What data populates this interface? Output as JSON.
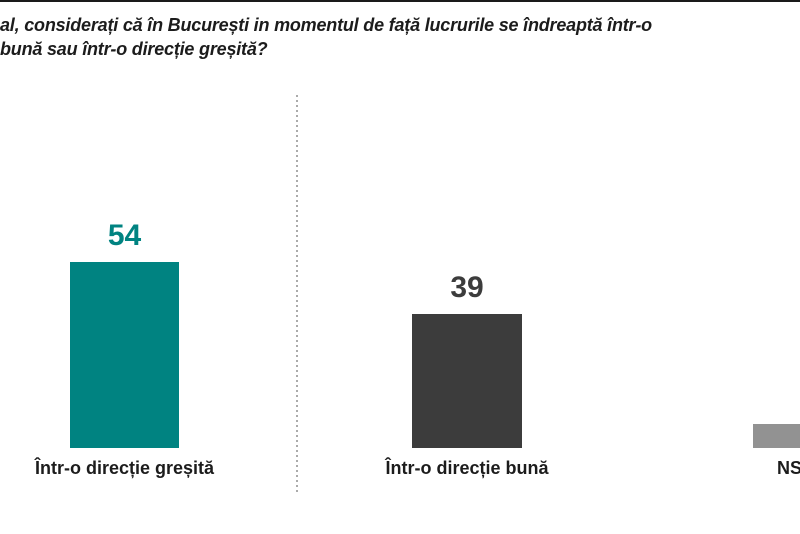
{
  "title": {
    "line1": "al, considerați că în București in momentul de față lucrurile se îndreaptă într-o",
    "line2": "bună sau într-o direcție greșită?",
    "color": "#1c1c1c"
  },
  "chart_data": {
    "type": "bar",
    "categories": [
      "Într-o direcție greșită",
      "Într-o direcție bună",
      "NS"
    ],
    "values": [
      54,
      39,
      7
    ],
    "value_labels": [
      "54",
      "39",
      ""
    ],
    "bar_colors": [
      "#008381",
      "#3c3c3c",
      "#929292"
    ],
    "value_label_colors": [
      "#008381",
      "#3c3c3c",
      "#929292"
    ],
    "title": "",
    "xlabel": "",
    "ylabel": "",
    "ylim": [
      0,
      60
    ],
    "grid": false,
    "legend": false
  },
  "separator": {
    "color": "#ababab"
  },
  "top_edge_color": "#1a1a1a"
}
